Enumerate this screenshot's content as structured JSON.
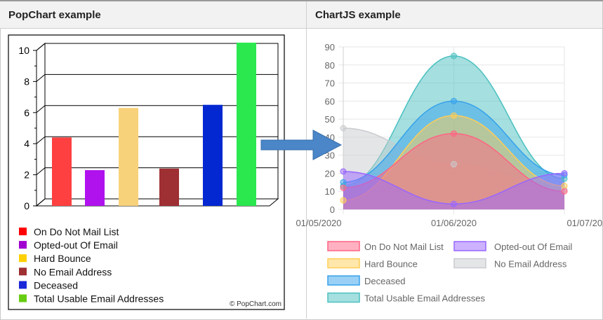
{
  "headers": {
    "left": "PopChart example",
    "right": "ChartJS example"
  },
  "arrow": {
    "color": "#4a86c8"
  },
  "chart_data": [
    {
      "type": "bar",
      "source": "PopChart",
      "watermark": "© PopChart.com",
      "y_ticks": [
        "0",
        "2",
        "4",
        "6",
        "8",
        "10"
      ],
      "ylim": [
        0,
        10
      ],
      "series": [
        {
          "name": "On Do Not Mail List",
          "value": 4.4,
          "color": "#ff4040",
          "legend_color": "#ff0000"
        },
        {
          "name": "Opted-out Of Email",
          "value": 2.3,
          "color": "#b012ee",
          "legend_color": "#a000d0"
        },
        {
          "name": "Hard Bounce",
          "value": 6.3,
          "color": "#f8d27a",
          "legend_color": "#ffd000"
        },
        {
          "name": "No Email Address",
          "value": 2.4,
          "color": "#9e2f33",
          "legend_color": "#9e2f33"
        },
        {
          "name": "Deceased",
          "value": 6.5,
          "color": "#0328d2",
          "legend_color": "#1a28d8"
        },
        {
          "name": "Total Usable Email Addresses",
          "value": 10.5,
          "color": "#2be84e",
          "legend_color": "#66cc11"
        }
      ]
    },
    {
      "type": "area",
      "source": "ChartJS",
      "categories": [
        "01/05/2020",
        "01/06/2020",
        "01/07/2020"
      ],
      "y_ticks": [
        "0",
        "10",
        "20",
        "30",
        "40",
        "50",
        "60",
        "70",
        "80",
        "90"
      ],
      "ylim": [
        0,
        90
      ],
      "series": [
        {
          "name": "On Do Not Mail List",
          "values": [
            12,
            42,
            10
          ],
          "fill": "rgba(255,99,132,0.5)",
          "stroke": "#ff6384"
        },
        {
          "name": "Opted-out Of Email",
          "values": [
            21,
            3,
            20
          ],
          "fill": "rgba(153,102,255,0.5)",
          "stroke": "#9966ff"
        },
        {
          "name": "Hard Bounce",
          "values": [
            5,
            52,
            13
          ],
          "fill": "rgba(255,205,86,0.5)",
          "stroke": "#ffcd56"
        },
        {
          "name": "No Email Address",
          "values": [
            45,
            25,
            11
          ],
          "fill": "rgba(201,203,207,0.5)",
          "stroke": "#c9cbcf"
        },
        {
          "name": "Deceased",
          "values": [
            15,
            60,
            19
          ],
          "fill": "rgba(54,162,235,0.5)",
          "stroke": "#36a2eb"
        },
        {
          "name": "Total Usable Email Addresses",
          "values": [
            13,
            85,
            17
          ],
          "fill": "rgba(75,192,192,0.5)",
          "stroke": "#4bc0c0"
        }
      ]
    }
  ]
}
